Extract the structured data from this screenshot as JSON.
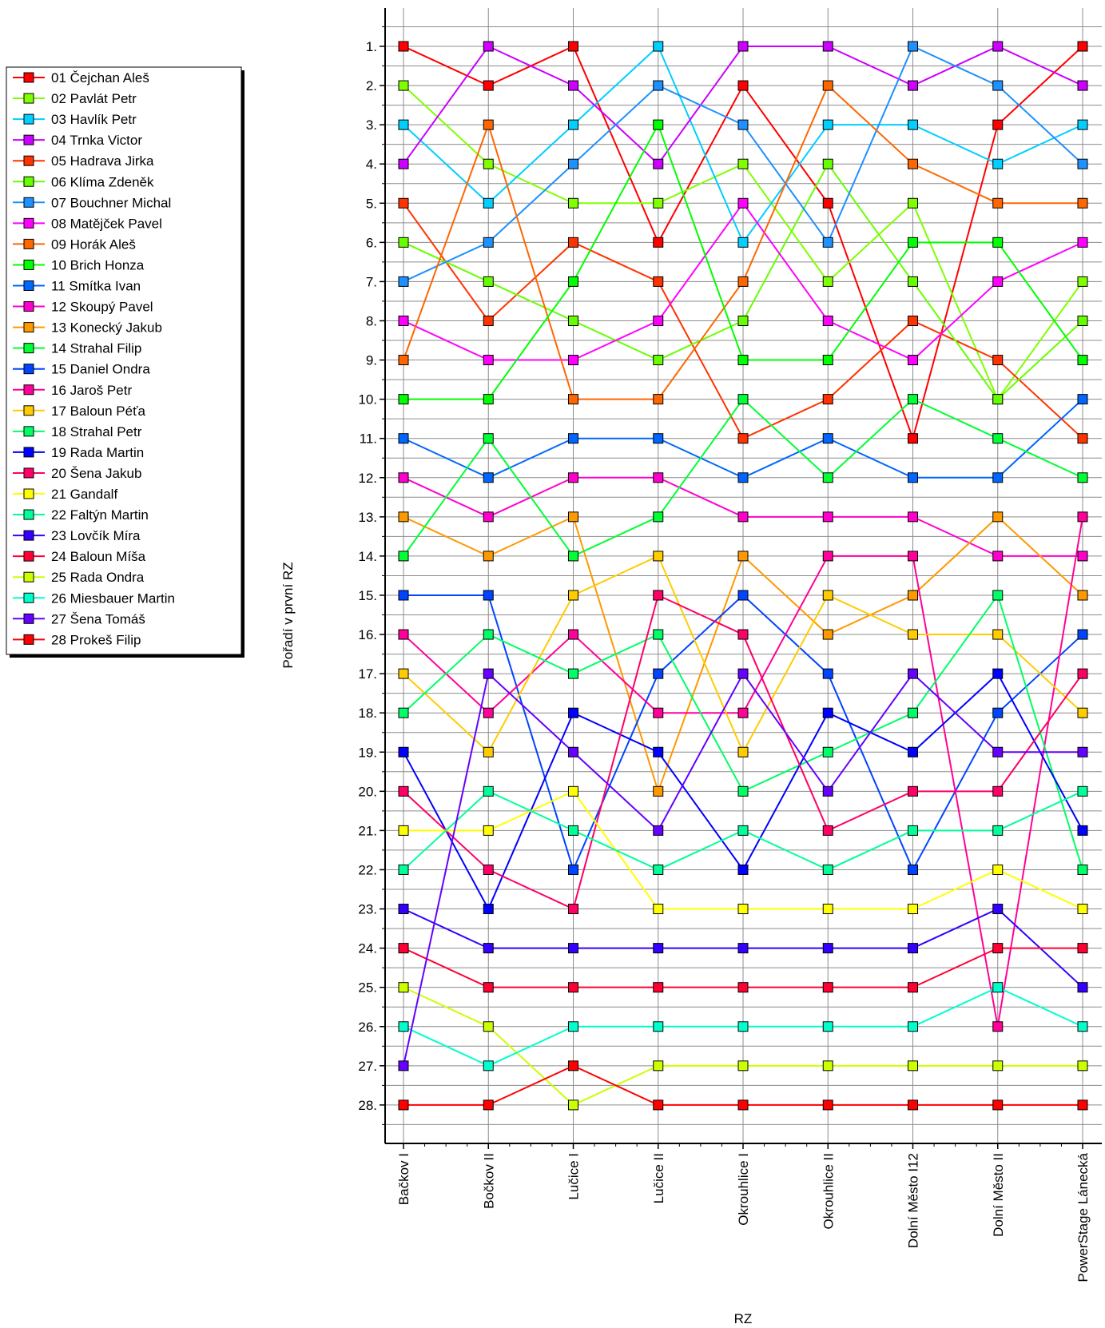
{
  "chart_data": {
    "type": "line",
    "title": "",
    "xlabel": "RZ",
    "ylabel": "Pořadí v první RZ",
    "ylim": [
      1,
      28
    ],
    "y_inverted": true,
    "y_tick_suffix": ".",
    "grid": true,
    "legend_position": "left",
    "categories": [
      "Bačkov I",
      "Bočkov II",
      "Lučice I",
      "Lučice II",
      "Okrouhlice I",
      "Okrouhlice II",
      "Dolní Město I12",
      "Dolní Město II",
      "PowerStage Lánecká"
    ],
    "series": [
      {
        "name": "01 Čejchan Aleš",
        "color": "#ff0000",
        "values": [
          1,
          2,
          1,
          6,
          2,
          5,
          11,
          3,
          1
        ]
      },
      {
        "name": "02 Pavlát Petr",
        "color": "#7fff00",
        "values": [
          2,
          4,
          5,
          5,
          4,
          7,
          5,
          10,
          7
        ]
      },
      {
        "name": "03 Havlík Petr",
        "color": "#00cfff",
        "values": [
          3,
          5,
          3,
          1,
          6,
          3,
          3,
          4,
          3
        ]
      },
      {
        "name": "04 Trnka Victor",
        "color": "#cc00ff",
        "values": [
          4,
          1,
          2,
          4,
          1,
          1,
          2,
          1,
          2
        ]
      },
      {
        "name": "05 Hadrava Jirka",
        "color": "#ff3300",
        "values": [
          5,
          8,
          6,
          7,
          11,
          10,
          8,
          9,
          11
        ]
      },
      {
        "name": "06 Klíma Zdeněk",
        "color": "#66ff00",
        "values": [
          6,
          7,
          8,
          9,
          8,
          4,
          7,
          10,
          8
        ]
      },
      {
        "name": "07 Bouchner Michal",
        "color": "#1e90ff",
        "values": [
          7,
          6,
          4,
          2,
          3,
          6,
          1,
          2,
          4
        ]
      },
      {
        "name": "08 Matějček Pavel",
        "color": "#ff00ff",
        "values": [
          8,
          9,
          9,
          8,
          5,
          8,
          9,
          7,
          6
        ]
      },
      {
        "name": "09 Horák Aleš",
        "color": "#ff6600",
        "values": [
          9,
          3,
          10,
          10,
          7,
          2,
          4,
          5,
          5
        ]
      },
      {
        "name": "10 Brich Honza",
        "color": "#00ff00",
        "values": [
          10,
          10,
          7,
          3,
          9,
          9,
          6,
          6,
          9
        ]
      },
      {
        "name": "11 Smítka Ivan",
        "color": "#0066ff",
        "values": [
          11,
          12,
          11,
          11,
          12,
          11,
          12,
          12,
          10
        ]
      },
      {
        "name": "12 Skoupý Pavel",
        "color": "#ff00cc",
        "values": [
          12,
          13,
          12,
          12,
          13,
          13,
          13,
          14,
          14
        ]
      },
      {
        "name": "13 Konecký Jakub",
        "color": "#ff9900",
        "values": [
          13,
          14,
          13,
          20,
          14,
          16,
          15,
          13,
          15
        ]
      },
      {
        "name": "14 Strahal Filip",
        "color": "#00ff33",
        "values": [
          14,
          11,
          14,
          13,
          10,
          12,
          10,
          11,
          12
        ]
      },
      {
        "name": "15 Daniel Ondra",
        "color": "#0044ff",
        "values": [
          15,
          15,
          22,
          17,
          15,
          17,
          22,
          18,
          16
        ]
      },
      {
        "name": "16 Jaroš Petr",
        "color": "#ff0099",
        "values": [
          16,
          18,
          16,
          18,
          18,
          14,
          14,
          26,
          13
        ]
      },
      {
        "name": "17 Baloun Péťa",
        "color": "#ffcc00",
        "values": [
          17,
          19,
          15,
          14,
          19,
          15,
          16,
          16,
          18
        ]
      },
      {
        "name": "18 Strahal Petr",
        "color": "#00ff66",
        "values": [
          18,
          16,
          17,
          16,
          20,
          19,
          18,
          15,
          22
        ]
      },
      {
        "name": "19 Rada Martin",
        "color": "#0000ff",
        "values": [
          19,
          23,
          18,
          19,
          22,
          18,
          19,
          17,
          21
        ]
      },
      {
        "name": "20 Šena Jakub",
        "color": "#ff0066",
        "values": [
          20,
          22,
          23,
          15,
          16,
          21,
          20,
          20,
          17
        ]
      },
      {
        "name": "21 Gandalf",
        "color": "#ffff00",
        "values": [
          21,
          21,
          20,
          23,
          23,
          23,
          23,
          22,
          23
        ]
      },
      {
        "name": "22 Faltýn Martin",
        "color": "#00ff99",
        "values": [
          22,
          20,
          21,
          22,
          21,
          22,
          21,
          21,
          20
        ]
      },
      {
        "name": "23 Lovčík Míra",
        "color": "#3300ff",
        "values": [
          23,
          24,
          24,
          24,
          24,
          24,
          24,
          23,
          25
        ]
      },
      {
        "name": "24 Baloun Míša",
        "color": "#ff0033",
        "values": [
          24,
          25,
          25,
          25,
          25,
          25,
          25,
          24,
          24
        ]
      },
      {
        "name": "25 Rada Ondra",
        "color": "#ccff00",
        "values": [
          25,
          26,
          28,
          27,
          27,
          27,
          27,
          27,
          27
        ]
      },
      {
        "name": "26 Miesbauer Martin",
        "color": "#00ffcc",
        "values": [
          26,
          27,
          26,
          26,
          26,
          26,
          26,
          25,
          26
        ]
      },
      {
        "name": "27 Šena Tomáš",
        "color": "#6600ff",
        "values": [
          27,
          17,
          19,
          21,
          17,
          20,
          17,
          19,
          19
        ]
      },
      {
        "name": "28 Prokeš Filip",
        "color": "#ff0000",
        "values": [
          28,
          28,
          27,
          28,
          28,
          28,
          28,
          28,
          28
        ]
      }
    ]
  }
}
